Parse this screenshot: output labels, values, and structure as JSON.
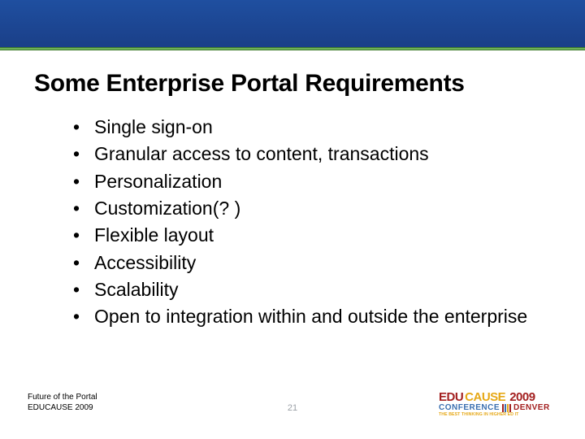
{
  "colors": {
    "header_band": "#1f4fa0",
    "green_accent": "#6fb35a",
    "text": "#000000",
    "page_number": "#9aa0a6",
    "logo_red": "#a32020",
    "logo_gold": "#e6a817",
    "logo_blue": "#3a6fb0"
  },
  "title": "Some Enterprise Portal Requirements",
  "bullets": [
    "Single sign-on",
    "Granular access to content, transactions",
    "Personalization",
    "Customization(? )",
    "Flexible layout",
    "Accessibility",
    "Scalability",
    "Open to integration within and outside the enterprise"
  ],
  "footer": {
    "line1": "Future of the Portal",
    "line2": "EDUCAUSE 2009"
  },
  "page_number": "21",
  "logo": {
    "edu": "EDU",
    "cause": "CAUSE",
    "year": "2009",
    "conference": "CONFERENCE",
    "denver": "DENVER",
    "tagline": "THE BEST THINKING IN HIGHER ED IT",
    "bar_colors": [
      "#a32020",
      "#3a6fb0",
      "#e6a817",
      "#a32020"
    ]
  },
  "typography": {
    "title_fontsize": 30,
    "bullet_fontsize": 23,
    "footer_fontsize": 10,
    "pagenum_fontsize": 11
  }
}
